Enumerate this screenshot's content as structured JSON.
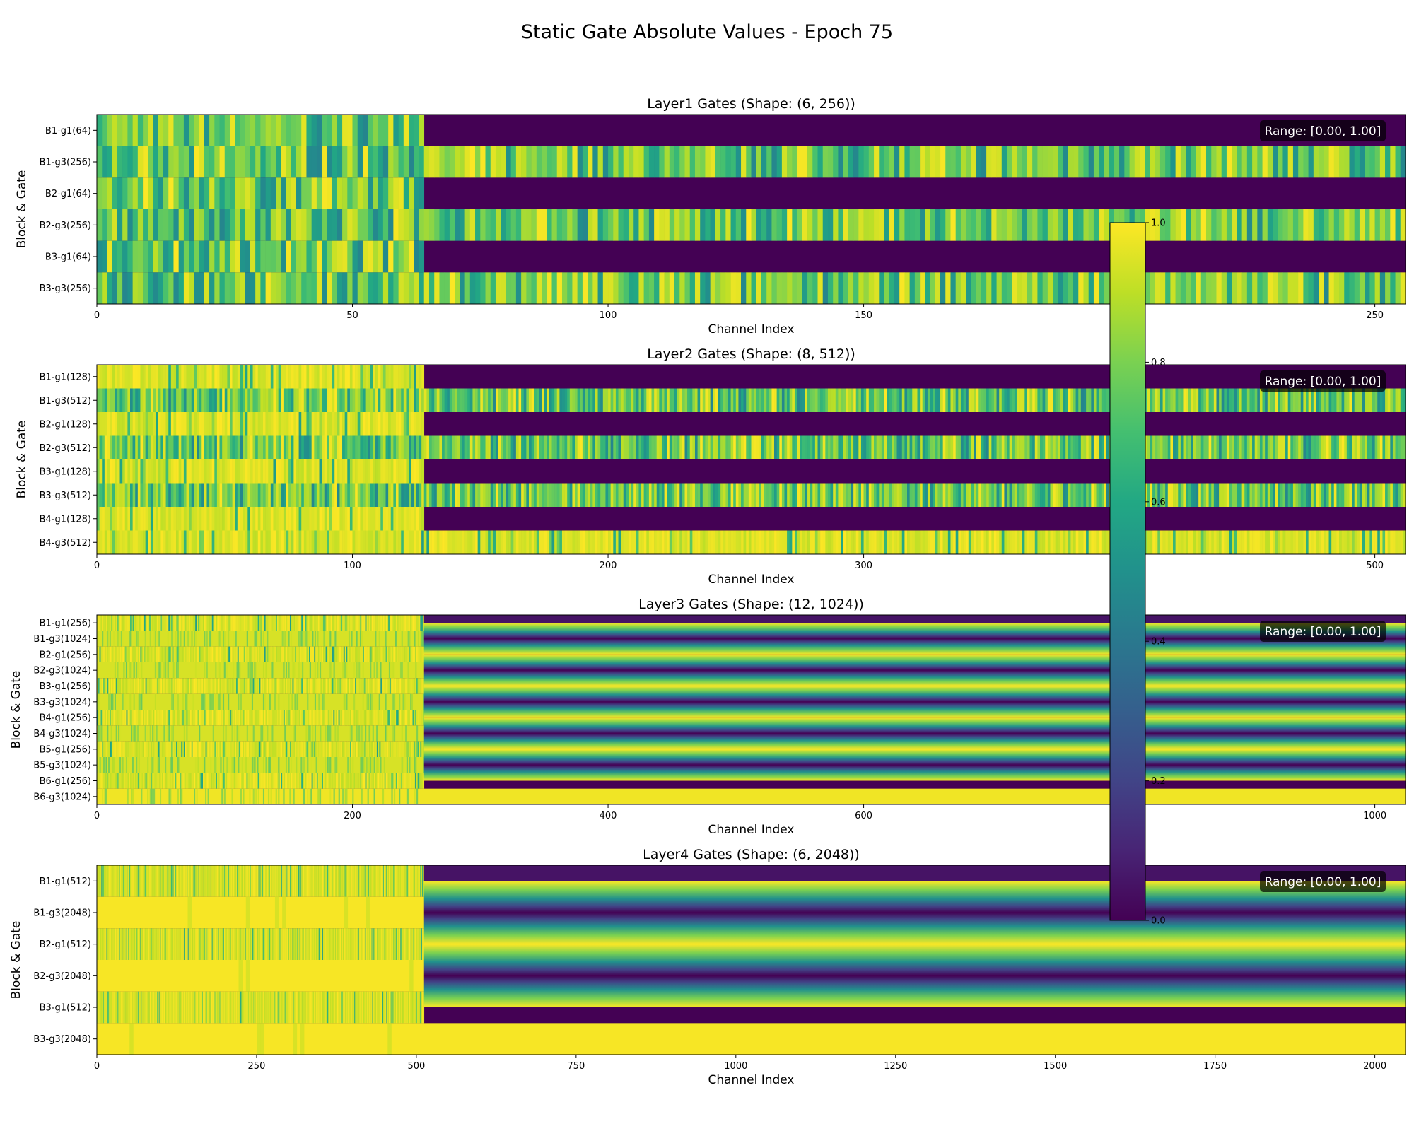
{
  "figure": {
    "title": "Static Gate Absolute Values - Epoch 75",
    "colormap": "viridis",
    "colorbar": {
      "min": 0.0,
      "max": 1.0,
      "ticks": [
        "0.0",
        "0.2",
        "0.4",
        "0.6",
        "0.8",
        "1.0"
      ]
    }
  },
  "chart_data": [
    {
      "type": "heatmap",
      "title": "Layer1 Gates (Shape: (6, 256))",
      "xlabel": "Channel Index",
      "ylabel": "Block & Gate",
      "xlim": [
        0,
        256
      ],
      "xticks": [
        0,
        50,
        100,
        150,
        200,
        250
      ],
      "rows": [
        "B1-g1(64)",
        "B1-g3(256)",
        "B2-g1(64)",
        "B2-g3(256)",
        "B3-g1(64)",
        "B3-g3(256)"
      ],
      "row_lengths": [
        64,
        256,
        64,
        256,
        64,
        256
      ],
      "row_mean_values": [
        0.86,
        0.74,
        0.87,
        0.76,
        0.88,
        0.82
      ],
      "fill_value": 0.0,
      "range_label": "Range: [0.00, 1.00]"
    },
    {
      "type": "heatmap",
      "title": "Layer2 Gates (Shape: (8, 512))",
      "xlabel": "Channel Index",
      "ylabel": "Block & Gate",
      "xlim": [
        0,
        512
      ],
      "xticks": [
        0,
        100,
        200,
        300,
        400,
        500
      ],
      "rows": [
        "B1-g1(128)",
        "B1-g3(512)",
        "B2-g1(128)",
        "B2-g3(512)",
        "B3-g1(128)",
        "B3-g3(512)",
        "B4-g1(128)",
        "B4-g3(512)"
      ],
      "row_lengths": [
        128,
        512,
        128,
        512,
        128,
        512,
        128,
        512
      ],
      "row_mean_values": [
        0.93,
        0.8,
        0.96,
        0.8,
        0.97,
        0.85,
        0.96,
        0.93
      ],
      "fill_value": 0.0,
      "range_label": "Range: [0.00, 1.00]"
    },
    {
      "type": "heatmap",
      "title": "Layer3 Gates (Shape: (12, 1024))",
      "xlabel": "Channel Index",
      "ylabel": "Block & Gate",
      "xlim": [
        0,
        1024
      ],
      "xticks": [
        0,
        200,
        400,
        600,
        800,
        1000
      ],
      "rows": [
        "B1-g1(256)",
        "B1-g3(1024)",
        "B2-g1(256)",
        "B2-g3(1024)",
        "B3-g1(256)",
        "B3-g3(1024)",
        "B4-g1(256)",
        "B4-g3(1024)",
        "B5-g1(256)",
        "B5-g3(1024)",
        "B6-g1(256)",
        "B6-g3(1024)"
      ],
      "row_lengths": [
        256,
        1024,
        256,
        1024,
        256,
        1024,
        256,
        1024,
        256,
        1024,
        256,
        1024
      ],
      "row_mean_values": [
        0.96,
        0.94,
        0.96,
        0.94,
        0.96,
        0.94,
        0.96,
        0.94,
        0.96,
        0.94,
        0.96,
        0.98
      ],
      "fill_value": 0.0,
      "range_label": "Range: [0.00, 1.00]"
    },
    {
      "type": "heatmap",
      "title": "Layer4 Gates (Shape: (6, 2048))",
      "xlabel": "Channel Index",
      "ylabel": "Block & Gate",
      "xlim": [
        0,
        2048
      ],
      "xticks": [
        0,
        250,
        500,
        750,
        1000,
        1250,
        1500,
        1750,
        2000
      ],
      "rows": [
        "B1-g1(512)",
        "B1-g3(2048)",
        "B2-g1(512)",
        "B2-g3(2048)",
        "B3-g1(512)",
        "B3-g3(2048)"
      ],
      "row_lengths": [
        512,
        2048,
        512,
        2048,
        512,
        2048
      ],
      "row_mean_values": [
        0.99,
        0.99,
        0.99,
        0.99,
        0.99,
        0.99
      ],
      "fill_value": 0.0,
      "range_label": "Range: [0.00, 1.00]"
    }
  ]
}
